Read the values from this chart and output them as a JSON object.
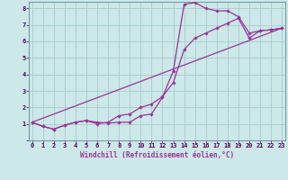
{
  "bg_color": "#cce8e8",
  "grid_color": "#aacccc",
  "line_color": "#993399",
  "marker_color": "#993399",
  "xlabel": "Windchill (Refroidissement éolien,°C)",
  "xlabel_fontsize": 5.5,
  "ytick_labels": [
    "",
    "1",
    "2",
    "3",
    "4",
    "5",
    "6",
    "7",
    "8"
  ],
  "xtick_labels": [
    "0",
    "1",
    "2",
    "3",
    "4",
    "5",
    "6",
    "7",
    "8",
    "9",
    "10",
    "11",
    "12",
    "13",
    "14",
    "15",
    "16",
    "17",
    "18",
    "19",
    "20",
    "21",
    "22",
    "23"
  ],
  "xlim": [
    -0.3,
    23.3
  ],
  "ylim": [
    0,
    8.4
  ],
  "line1_x": [
    0,
    1,
    2,
    3,
    4,
    5,
    6,
    7,
    8,
    9,
    10,
    11,
    12,
    13,
    14,
    15,
    16,
    17,
    18,
    19,
    20,
    21,
    22,
    23
  ],
  "line1_y": [
    1.1,
    0.85,
    0.68,
    0.92,
    1.1,
    1.2,
    1.1,
    1.05,
    1.1,
    1.1,
    1.5,
    1.6,
    2.6,
    4.2,
    8.25,
    8.35,
    8.0,
    7.85,
    7.85,
    7.5,
    6.5,
    6.65,
    6.7,
    6.8
  ],
  "line2_x": [
    0,
    1,
    2,
    3,
    4,
    5,
    6,
    7,
    8,
    9,
    10,
    11,
    12,
    13,
    14,
    15,
    16,
    17,
    18,
    19,
    20,
    21,
    22,
    23
  ],
  "line2_y": [
    1.1,
    0.85,
    0.68,
    0.92,
    1.1,
    1.2,
    1.0,
    1.1,
    1.5,
    1.6,
    2.0,
    2.2,
    2.65,
    3.5,
    5.5,
    6.2,
    6.5,
    6.8,
    7.1,
    7.4,
    6.2,
    6.65,
    6.7,
    6.8
  ],
  "line3_x": [
    0,
    23
  ],
  "line3_y": [
    1.1,
    6.8
  ],
  "tick_fontsize": 5,
  "tick_color": "#550055"
}
